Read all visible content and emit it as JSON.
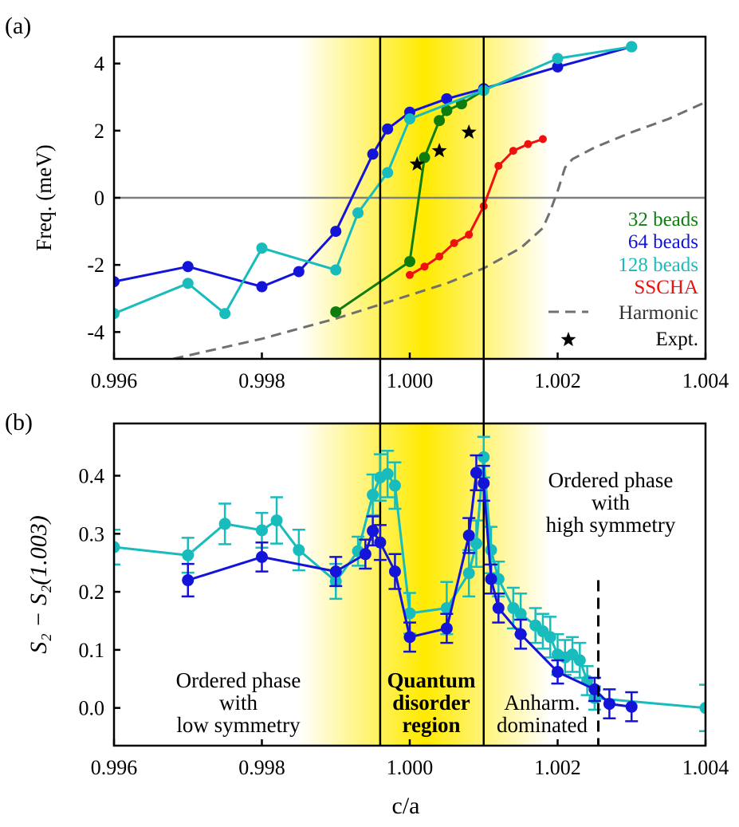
{
  "panel_labels": {
    "a": "(a)",
    "b": "(b)"
  },
  "shared": {
    "xlabel": "c/a",
    "xlim": [
      0.996,
      1.004
    ],
    "xticks": [
      "0.996",
      "0.998",
      "1.000",
      "1.002",
      "1.004"
    ],
    "xtick_values": [
      0.996,
      0.998,
      1.0,
      1.002,
      1.004
    ],
    "vlines": [
      0.9996,
      1.001
    ],
    "highlight_center": 1.0002,
    "highlight_color": "#ffea00"
  },
  "chart_data": [
    {
      "type": "line",
      "panel": "a",
      "ylabel": "Freq. (meV)",
      "ylim": [
        -4.8,
        4.8
      ],
      "yticks": [
        "-4",
        "-2",
        "0",
        "2",
        "4"
      ],
      "ytick_values": [
        -4,
        -2,
        0,
        2,
        4
      ],
      "hline": 0,
      "legend_position": "bottom-right",
      "series": [
        {
          "name": "32 beads",
          "color": "#0e7d0e",
          "style": "line-marker",
          "x": [
            0.999,
            1.0,
            1.0002,
            1.0004,
            1.0005,
            1.0007,
            1.001
          ],
          "y": [
            -3.4,
            -1.9,
            1.2,
            2.3,
            2.6,
            2.8,
            3.2
          ]
        },
        {
          "name": "64 beads",
          "color": "#1414d8",
          "style": "line-marker",
          "x": [
            0.996,
            0.997,
            0.998,
            0.9985,
            0.999,
            0.9995,
            0.9997,
            1.0,
            1.0005,
            1.001,
            1.002,
            1.003
          ],
          "y": [
            -2.5,
            -2.05,
            -2.65,
            -2.2,
            -1.0,
            1.3,
            2.05,
            2.55,
            2.95,
            3.25,
            3.9,
            4.5
          ]
        },
        {
          "name": "128 beads",
          "color": "#19bcbc",
          "style": "line-marker",
          "x": [
            0.996,
            0.997,
            0.9975,
            0.998,
            0.999,
            0.9993,
            0.9997,
            1.0,
            1.001,
            1.002,
            1.003
          ],
          "y": [
            -3.45,
            -2.55,
            -3.45,
            -1.5,
            -2.15,
            -0.45,
            0.75,
            2.35,
            3.2,
            4.15,
            4.5
          ]
        },
        {
          "name": "SSCHA",
          "color": "#f01010",
          "style": "line-marker-small",
          "x": [
            1.0,
            1.0002,
            1.0004,
            1.0006,
            1.0008,
            1.001,
            1.0012,
            1.0014,
            1.0016,
            1.0018
          ],
          "y": [
            -2.3,
            -2.05,
            -1.75,
            -1.35,
            -1.1,
            -0.25,
            0.95,
            1.4,
            1.6,
            1.75
          ]
        },
        {
          "name": "Harmonic",
          "color": "#707070",
          "style": "dashed",
          "x": [
            0.9968,
            0.9975,
            0.998,
            0.9985,
            0.999,
            0.9995,
            1.0,
            1.0005,
            1.001,
            1.0015,
            1.0018,
            1.0019,
            1.002,
            1.0021,
            1.0022,
            1.0025,
            1.003,
            1.0035,
            1.004
          ],
          "y": [
            -4.8,
            -4.45,
            -4.2,
            -3.9,
            -3.6,
            -3.25,
            -2.9,
            -2.55,
            -2.1,
            -1.5,
            -0.9,
            -0.4,
            0.2,
            0.9,
            1.15,
            1.5,
            1.95,
            2.35,
            2.85
          ]
        },
        {
          "name": "Expt.",
          "color": "#000000",
          "style": "star",
          "x": [
            1.0001,
            1.0004,
            1.0008
          ],
          "y": [
            1.0,
            1.4,
            1.95
          ]
        }
      ]
    },
    {
      "type": "line",
      "panel": "b",
      "xlabel": "c/a",
      "ylabel": "S₂ − S₂(1.003)",
      "ylim": [
        -0.065,
        0.49
      ],
      "yticks": [
        "0.0",
        "0.1",
        "0.2",
        "0.3",
        "0.4"
      ],
      "ytick_values": [
        0.0,
        0.1,
        0.2,
        0.3,
        0.4
      ],
      "dashed_vline": {
        "x": 1.00255,
        "ymax": 0.22
      },
      "series": [
        {
          "color": "#19bcbc",
          "style": "errorbar",
          "x": [
            0.996,
            0.997,
            0.9975,
            0.998,
            0.9982,
            0.9985,
            0.999,
            0.9993,
            0.9995,
            0.9996,
            0.9997,
            0.9998,
            1.0,
            1.0005,
            1.0008,
            1.0009,
            1.001,
            1.0011,
            1.0012,
            1.0014,
            1.0015,
            1.0017,
            1.0018,
            1.0019,
            1.002,
            1.0021,
            1.0022,
            1.0023,
            1.0024,
            1.0025,
            1.004
          ],
          "y": [
            0.277,
            0.263,
            0.317,
            0.306,
            0.323,
            0.272,
            0.218,
            0.27,
            0.367,
            0.397,
            0.403,
            0.383,
            0.163,
            0.172,
            0.232,
            0.283,
            0.432,
            0.272,
            0.222,
            0.172,
            0.162,
            0.142,
            0.132,
            0.122,
            0.092,
            0.087,
            0.092,
            0.082,
            0.047,
            0.017,
            0.0
          ],
          "err": [
            0.03,
            0.03,
            0.035,
            0.03,
            0.04,
            0.035,
            0.03,
            0.025,
            0.035,
            0.04,
            0.04,
            0.04,
            0.035,
            0.045,
            0.04,
            0.04,
            0.035,
            0.04,
            0.03,
            0.035,
            0.035,
            0.03,
            0.03,
            0.035,
            0.035,
            0.03,
            0.03,
            0.03,
            0.025,
            0.02,
            0.04
          ]
        },
        {
          "color": "#1414d8",
          "style": "errorbar",
          "x": [
            0.997,
            0.998,
            0.999,
            0.9994,
            0.9995,
            0.9996,
            0.9998,
            1.0,
            1.0005,
            1.0008,
            1.0009,
            1.001,
            1.0011,
            1.0012,
            1.0015,
            1.002,
            1.0025,
            1.0027,
            1.003
          ],
          "y": [
            0.22,
            0.26,
            0.235,
            0.265,
            0.305,
            0.285,
            0.235,
            0.122,
            0.137,
            0.297,
            0.405,
            0.387,
            0.222,
            0.172,
            0.127,
            0.062,
            0.032,
            0.007,
            0.002
          ],
          "err": [
            0.028,
            0.025,
            0.025,
            0.025,
            0.025,
            0.03,
            0.03,
            0.025,
            0.025,
            0.03,
            0.03,
            0.03,
            0.025,
            0.025,
            0.025,
            0.02,
            0.02,
            0.025,
            0.025
          ]
        }
      ]
    }
  ],
  "annotations": {
    "low_symmetry": [
      "Ordered phase",
      "with",
      "low symmetry"
    ],
    "quantum": [
      "Quantum",
      "disorder",
      "region"
    ],
    "anharm": [
      "Anharm.",
      "dominated"
    ],
    "high_symmetry": [
      "Ordered phase",
      "with",
      "high symmetry"
    ]
  },
  "legend_text_colors": {
    "32 beads": "#0e7d0e",
    "64 beads": "#1414d8",
    "128 beads": "#19bcbc",
    "SSCHA": "#f01010",
    "Harmonic": "#333333",
    "Expt.": "#000000"
  }
}
